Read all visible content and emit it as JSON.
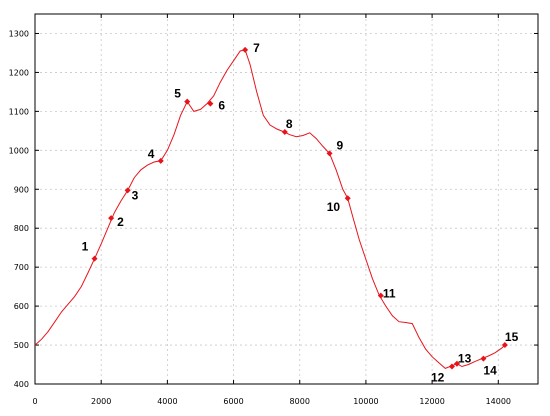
{
  "chart_data": {
    "type": "line",
    "title": "",
    "xlabel": "",
    "ylabel": "",
    "xlim": [
      0,
      15200
    ],
    "ylim": [
      400,
      1350
    ],
    "grid": true,
    "x_ticks": [
      0,
      2000,
      4000,
      6000,
      8000,
      10000,
      12000,
      14000
    ],
    "y_ticks": [
      400,
      500,
      600,
      700,
      800,
      900,
      1000,
      1100,
      1200,
      1300
    ],
    "line_color": "#e8141c",
    "series": [
      {
        "x": [
          0,
          200,
          400,
          600,
          800,
          1000,
          1200,
          1400,
          1600,
          1800,
          2000,
          2200,
          2400,
          2600,
          2800,
          3000,
          3200,
          3400,
          3600,
          3800,
          4000,
          4200,
          4400,
          4600,
          4800,
          5000,
          5200,
          5400,
          5600,
          5800,
          6000,
          6200,
          6350,
          6500,
          6700,
          6900,
          7100,
          7300,
          7500,
          7700,
          7900,
          8100,
          8300,
          8500,
          8700,
          8900,
          9100,
          9300,
          9450,
          9600,
          9800,
          10000,
          10200,
          10400,
          10600,
          10800,
          11000,
          11200,
          11400,
          11600,
          11800,
          12000,
          12200,
          12400,
          12600,
          12750,
          12900,
          13100,
          13300,
          13500,
          13700,
          13900,
          14100,
          14200
        ],
        "y": [
          500,
          515,
          535,
          560,
          585,
          605,
          625,
          650,
          685,
          722,
          760,
          800,
          840,
          870,
          897,
          930,
          950,
          962,
          970,
          973,
          1000,
          1040,
          1090,
          1125,
          1100,
          1105,
          1120,
          1140,
          1175,
          1205,
          1230,
          1255,
          1258,
          1220,
          1150,
          1090,
          1065,
          1055,
          1048,
          1040,
          1035,
          1038,
          1045,
          1030,
          1010,
          992,
          950,
          900,
          877,
          830,
          770,
          720,
          670,
          628,
          600,
          575,
          560,
          558,
          555,
          520,
          490,
          470,
          455,
          440,
          447,
          452,
          445,
          450,
          458,
          465,
          472,
          480,
          492,
          500
        ]
      }
    ],
    "points": [
      {
        "label": "1",
        "x": 1800,
        "y": 722
      },
      {
        "label": "2",
        "x": 2300,
        "y": 826
      },
      {
        "label": "3",
        "x": 2800,
        "y": 897
      },
      {
        "label": "4",
        "x": 3800,
        "y": 973
      },
      {
        "label": "5",
        "x": 4600,
        "y": 1125
      },
      {
        "label": "6",
        "x": 5300,
        "y": 1120
      },
      {
        "label": "7",
        "x": 6350,
        "y": 1258
      },
      {
        "label": "8",
        "x": 7550,
        "y": 1047
      },
      {
        "label": "9",
        "x": 8900,
        "y": 992
      },
      {
        "label": "10",
        "x": 9450,
        "y": 877
      },
      {
        "label": "11",
        "x": 10450,
        "y": 627
      },
      {
        "label": "12",
        "x": 12600,
        "y": 445
      },
      {
        "label": "13",
        "x": 12750,
        "y": 452
      },
      {
        "label": "14",
        "x": 13550,
        "y": 465
      },
      {
        "label": "15",
        "x": 14200,
        "y": 500
      }
    ]
  }
}
